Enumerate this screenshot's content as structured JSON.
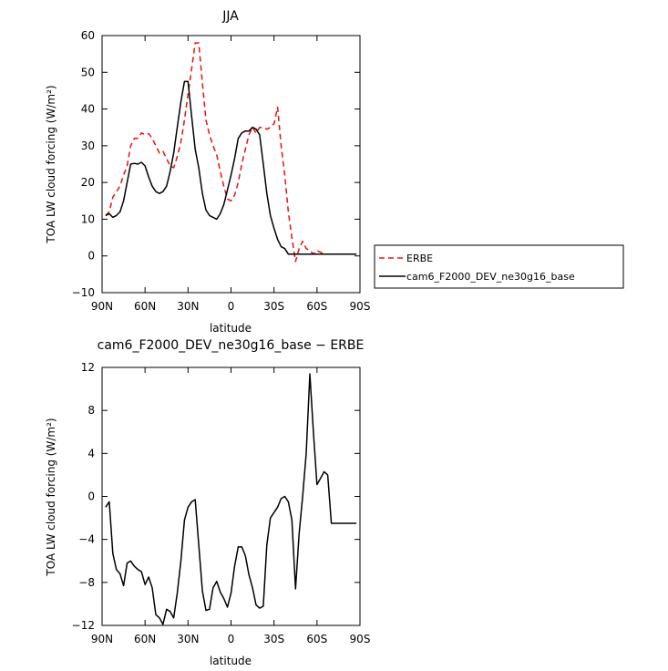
{
  "chart_data": [
    {
      "type": "line",
      "title": "JJA",
      "xlabel": "latitude",
      "ylabel": "TOA LW cloud forcing (W/m²)",
      "xlim": [
        90,
        -90
      ],
      "ylim": [
        -10,
        60
      ],
      "xticks": [
        90,
        60,
        30,
        0,
        -30,
        -60,
        -90
      ],
      "xtick_labels": [
        "90N",
        "60N",
        "30N",
        "0",
        "30S",
        "60S",
        "90S"
      ],
      "yticks": [
        -10,
        0,
        10,
        20,
        30,
        40,
        50,
        60
      ],
      "ytick_labels": [
        "−10",
        "0",
        "10",
        "20",
        "30",
        "40",
        "50",
        "60"
      ],
      "legend": {
        "placement": "right",
        "entries": [
          "ERBE",
          "cam6_F2000_DEV_ne30g16_base"
        ]
      },
      "series": [
        {
          "name": "ERBE",
          "color": "#e8120c",
          "dash": "dashed",
          "x": [
            87.5,
            85,
            82.5,
            80,
            77.5,
            75,
            72.5,
            70,
            67.5,
            65,
            62.5,
            60,
            57.5,
            55,
            52.5,
            50,
            47.5,
            45,
            42.5,
            40,
            37.5,
            35,
            32.5,
            30,
            27.5,
            25,
            22.5,
            20,
            17.5,
            15,
            12.5,
            10,
            7.5,
            5,
            2.5,
            0,
            -2.5,
            -5,
            -7.5,
            -10,
            -12.5,
            -15,
            -17.5,
            -20,
            -22.5,
            -25,
            -27.5,
            -30,
            -32.5,
            -35,
            -37.5,
            -40,
            -42.5,
            -45,
            -47.5,
            -50,
            -52.5,
            -55,
            -57.5,
            -60,
            -62.5,
            -65,
            -67.5,
            -70,
            -72.5,
            -75,
            -77.5,
            -80,
            -82.5,
            -85,
            -87.5
          ],
          "values": [
            11,
            12,
            16,
            17.5,
            19,
            22,
            24.5,
            30,
            32,
            32,
            33.5,
            33,
            33.3,
            32,
            30,
            28,
            28.5,
            26.5,
            24.5,
            24,
            27,
            31,
            37,
            44,
            51,
            58,
            58,
            47,
            37,
            33,
            30,
            27.5,
            23,
            19,
            15.5,
            15,
            16.5,
            20,
            25,
            29,
            33,
            35,
            33.5,
            35,
            35,
            34.5,
            35,
            36,
            40.5,
            30,
            22,
            12,
            5,
            -1.5,
            2,
            4,
            2,
            1.5,
            0.5,
            1.5,
            1,
            0.5,
            0.5,
            0.5,
            0.5,
            0.5,
            0.5,
            0.5,
            0.5,
            0.5,
            0.5
          ]
        },
        {
          "name": "cam6_F2000_DEV_ne30g16_base",
          "color": "#000000",
          "dash": "solid",
          "x": [
            87.5,
            85,
            82.5,
            80,
            77.5,
            75,
            72.5,
            70,
            67.5,
            65,
            62.5,
            60,
            57.5,
            55,
            52.5,
            50,
            47.5,
            45,
            42.5,
            40,
            37.5,
            35,
            32.5,
            30,
            27.5,
            25,
            22.5,
            20,
            17.5,
            15,
            12.5,
            10,
            7.5,
            5,
            2.5,
            0,
            -2.5,
            -5,
            -7.5,
            -10,
            -12.5,
            -15,
            -17.5,
            -20,
            -22.5,
            -25,
            -27.5,
            -30,
            -32.5,
            -35,
            -37.5,
            -40,
            -42.5,
            -45,
            -47.5,
            -50,
            -52.5,
            -55,
            -57.5,
            -60,
            -62.5,
            -65,
            -67.5,
            -70,
            -72.5,
            -75,
            -77.5,
            -80,
            -82.5,
            -85,
            -87.5
          ],
          "values": [
            11,
            11.5,
            10.5,
            11,
            12,
            15,
            20,
            25,
            25.2,
            25,
            25.5,
            24.5,
            21.5,
            19,
            17.5,
            17,
            17.5,
            19,
            23,
            28,
            35,
            42,
            47.5,
            47.5,
            38,
            29,
            24,
            17,
            12.5,
            11,
            10.5,
            10,
            11.5,
            14,
            18,
            22,
            26.5,
            32,
            33.5,
            34,
            34,
            35,
            34.5,
            33,
            25,
            17,
            11,
            7.5,
            4.5,
            2.5,
            2,
            0.5,
            0.5,
            0.5,
            0.5,
            0.5,
            0.5,
            0.5,
            0.5,
            0.5,
            0.5,
            0.5,
            0.5,
            0.5,
            0.5,
            0.5,
            0.5,
            0.5,
            0.5,
            0.5,
            0.5
          ]
        }
      ]
    },
    {
      "type": "line",
      "title": "cam6_F2000_DEV_ne30g16_base − ERBE",
      "xlabel": "latitude",
      "ylabel": "TOA LW cloud forcing (W/m²)",
      "xlim": [
        90,
        -90
      ],
      "ylim": [
        -12,
        12
      ],
      "xticks": [
        90,
        60,
        30,
        0,
        -30,
        -60,
        -90
      ],
      "xtick_labels": [
        "90N",
        "60N",
        "30N",
        "0",
        "30S",
        "60S",
        "90S"
      ],
      "yticks": [
        -12,
        -8,
        -4,
        0,
        4,
        8,
        12
      ],
      "ytick_labels": [
        "−12",
        "−8",
        "−4",
        "0",
        "4",
        "8",
        "12"
      ],
      "series": [
        {
          "color": "#000000",
          "dash": "solid",
          "x": [
            87.5,
            85,
            82.5,
            80,
            77.5,
            75,
            72.5,
            70,
            67.5,
            65,
            62.5,
            60,
            57.5,
            55,
            52.5,
            50,
            47.5,
            45,
            42.5,
            40,
            37.5,
            35,
            32.5,
            30,
            27.5,
            25,
            22.5,
            20,
            17.5,
            15,
            12.5,
            10,
            7.5,
            5,
            2.5,
            0,
            -2.5,
            -5,
            -7.5,
            -10,
            -12.5,
            -15,
            -17.5,
            -20,
            -22.5,
            -25,
            -27.5,
            -30,
            -32.5,
            -35,
            -37.5,
            -40,
            -42.5,
            -45,
            -47.5,
            -50,
            -52.5,
            -55,
            -57.5,
            -60,
            -62.5,
            -65,
            -67.5,
            -70,
            -72.5,
            -75,
            -77.5,
            -80,
            -82.5,
            -85,
            -87.5
          ],
          "values": [
            -1,
            -0.5,
            -5.3,
            -6.8,
            -7.2,
            -8.3,
            -6.2,
            -6,
            -6.5,
            -6.8,
            -7,
            -8.2,
            -7.5,
            -8.5,
            -11,
            -11.3,
            -11.9,
            -10.5,
            -10.7,
            -11.3,
            -9,
            -6,
            -2.2,
            -1,
            -0.5,
            -0.3,
            -4.5,
            -8.8,
            -10.6,
            -10.5,
            -8.5,
            -7.9,
            -8.9,
            -9.5,
            -10.3,
            -9,
            -6.5,
            -4.7,
            -4.7,
            -5.5,
            -7.3,
            -8.5,
            -10.1,
            -10.4,
            -10.2,
            -4.5,
            -2,
            -1.5,
            -1,
            -0.2,
            0,
            -0.5,
            -2.2,
            -8.6,
            -3.5,
            0,
            4,
            11.4,
            6,
            1.1,
            1.7,
            2.3,
            2,
            -2.5,
            -2.5,
            -2.5,
            -2.5,
            -2.5,
            -2.5,
            -2.5,
            -2.5
          ]
        }
      ]
    }
  ]
}
